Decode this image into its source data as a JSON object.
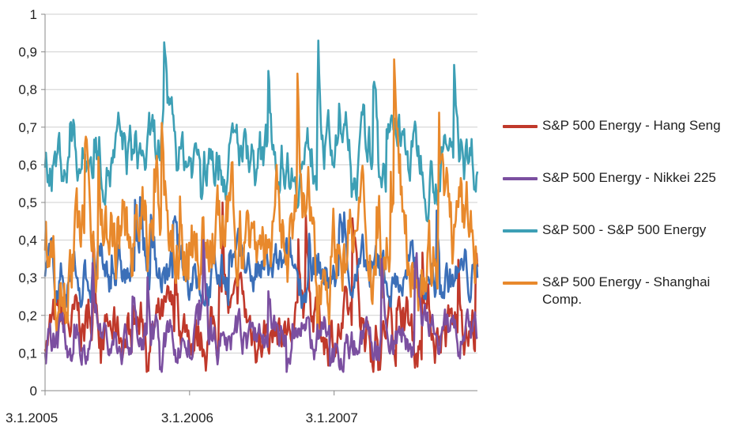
{
  "chart_data": {
    "type": "line",
    "title": "",
    "xlabel": "",
    "ylabel": "",
    "ylim": [
      0,
      1
    ],
    "yticks": [
      "0",
      "0,1",
      "0,2",
      "0,3",
      "0,4",
      "0,5",
      "0,6",
      "0,7",
      "0,8",
      "0,9",
      "1"
    ],
    "xlim": [
      "2005-01-03",
      "2007-12-31"
    ],
    "xticks": [
      {
        "label": "3.1.2005",
        "date": "2005-01-03"
      },
      {
        "label": "3.1.2006",
        "date": "2006-01-03"
      },
      {
        "label": "3.1.2007",
        "date": "2007-01-03"
      }
    ],
    "grid": "horizontal",
    "legend_position": "right",
    "series": [
      {
        "name": "S&P 500 Energy - Hang Seng",
        "color": "#c0392b",
        "mean": 0.16,
        "min": 0.05,
        "max": 0.5
      },
      {
        "name": "S&P 500 Energy - Nikkei 225",
        "color": "#7b4fa0",
        "mean": 0.13,
        "min": 0.05,
        "max": 0.4
      },
      {
        "name": "S&P 500 - S&P 500 Energy",
        "color": "#3d9fb5",
        "mean": 0.62,
        "min": 0.45,
        "max": 0.93
      },
      {
        "name": "S&P 500 Energy - Shanghai Comp.",
        "color": "#e8892c",
        "mean": 0.4,
        "min": 0.14,
        "max": 0.88
      }
    ],
    "extra_line": {
      "color": "#3b6fb8",
      "mean": 0.3,
      "min": 0.15,
      "max": 0.55
    }
  }
}
